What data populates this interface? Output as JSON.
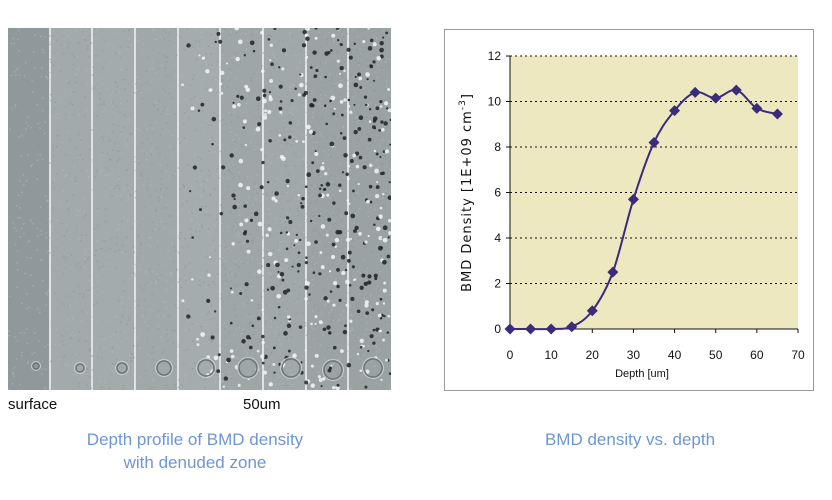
{
  "micrograph": {
    "label_left": "surface",
    "label_right": "50um",
    "caption_line1": "Depth profile of BMD density",
    "caption_line2": "with denuded zone"
  },
  "chart_caption": "BMD density vs. depth",
  "colors": {
    "caption": "#6f96d4",
    "plot_background": "#ede8c0",
    "series": "#3a2c7a"
  },
  "chart_data": {
    "type": "line",
    "title": "",
    "xlabel": "Depth [um]",
    "ylabel_prefix": "BMD Density [1E+09 cm",
    "ylabel_exponent": "-3",
    "ylabel_suffix": "]",
    "xlim": [
      0,
      70
    ],
    "ylim": [
      0,
      12
    ],
    "xticks": [
      0,
      10,
      20,
      30,
      40,
      50,
      60,
      70
    ],
    "yticks": [
      0,
      2,
      4,
      6,
      8,
      10,
      12
    ],
    "grid": "horizontal dotted",
    "legend": "none",
    "marker": "diamond",
    "series": [
      {
        "x": [
          0,
          5,
          10,
          15,
          20,
          25,
          30,
          35,
          40,
          45,
          50,
          55,
          60,
          65
        ],
        "y": [
          0.0,
          0.0,
          0.0,
          0.1,
          0.8,
          2.5,
          5.7,
          8.2,
          9.6,
          10.4,
          10.15,
          10.5,
          9.7,
          9.45
        ]
      }
    ]
  }
}
